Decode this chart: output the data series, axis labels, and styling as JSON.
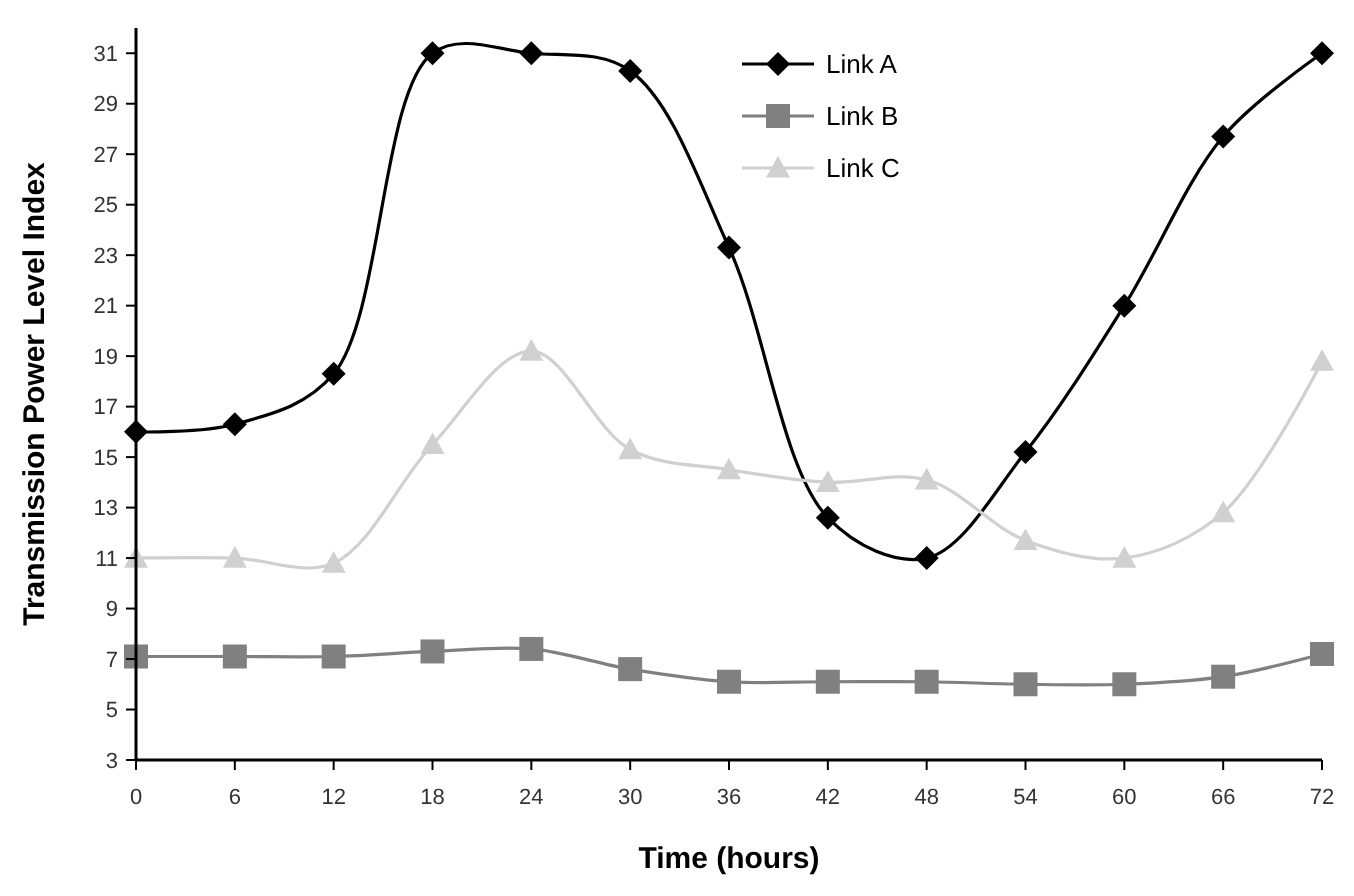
{
  "chart_data": {
    "type": "line",
    "xlabel": "Time (hours)",
    "ylabel": "Transmission Power Level Index",
    "x": [
      0,
      6,
      12,
      18,
      24,
      30,
      36,
      42,
      48,
      54,
      60,
      66,
      72
    ],
    "xlim": [
      0,
      72
    ],
    "xticks": [
      0,
      6,
      12,
      18,
      24,
      30,
      36,
      42,
      48,
      54,
      60,
      66,
      72
    ],
    "ylim": [
      3,
      32
    ],
    "yticks": [
      3,
      5,
      7,
      9,
      11,
      13,
      15,
      17,
      19,
      21,
      23,
      25,
      27,
      29,
      31
    ],
    "grid": false,
    "legend": "top right",
    "line_style": "solid",
    "series": [
      {
        "name": "Link A",
        "color": "#000000",
        "marker": "diamond",
        "values": [
          16,
          16.3,
          18.3,
          31,
          31,
          30.3,
          23.3,
          12.6,
          11,
          15.2,
          21,
          27.7,
          31
        ]
      },
      {
        "name": "Link B",
        "color": "#808080",
        "marker": "square",
        "values": [
          7.1,
          7.1,
          7.1,
          7.3,
          7.4,
          6.6,
          6.1,
          6.1,
          6.1,
          6.0,
          6.0,
          6.3,
          7.2
        ]
      },
      {
        "name": "Link C",
        "color": "#d0d0d0",
        "marker": "triangle",
        "values": [
          11,
          11,
          10.8,
          15.5,
          19.2,
          15.3,
          14.5,
          14.0,
          14.1,
          11.7,
          11.0,
          12.8,
          18.8
        ]
      }
    ]
  }
}
